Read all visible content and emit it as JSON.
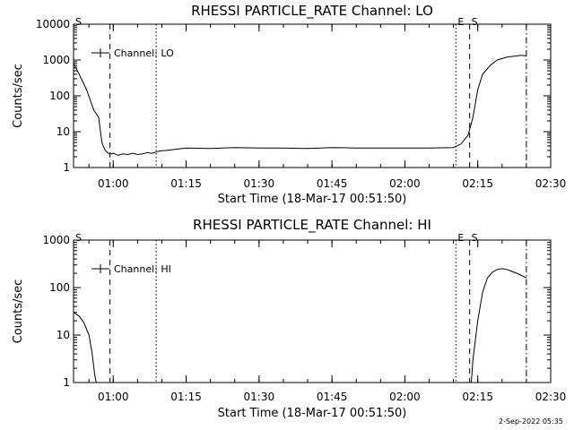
{
  "footer": {
    "timestamp": "2-Sep-2022 05:35"
  },
  "chart_data": [
    {
      "type": "line",
      "title": "RHESSI PARTICLE_RATE Channel: LO",
      "xlabel": "Start Time (18-Mar-17 00:51:50)",
      "ylabel": "Counts/sec",
      "yscale": "log",
      "ylim": [
        1,
        10000
      ],
      "yticks": [
        1,
        10,
        100,
        1000,
        10000
      ],
      "ytick_labels": [
        "1",
        "10",
        "100",
        "1000",
        "10000"
      ],
      "xlim": [
        "00:51:50",
        "02:30:00"
      ],
      "xticks": [
        "01:00",
        "01:15",
        "01:30",
        "01:45",
        "02:00",
        "02:15",
        "02:30"
      ],
      "legend": {
        "label": "Channel: LO",
        "position": "top-left"
      },
      "markers": [
        {
          "time": "00:51:50",
          "label": "S",
          "style": "solid"
        },
        {
          "time": "00:59:20",
          "label": "",
          "style": "dashed"
        },
        {
          "time": "01:08:50",
          "label": "",
          "style": "dotted"
        },
        {
          "time": "02:10:30",
          "label": "E",
          "style": "dotted"
        },
        {
          "time": "02:13:20",
          "label": "S",
          "style": "dashed"
        },
        {
          "time": "02:25:00",
          "label": "",
          "style": "dash-dot"
        }
      ],
      "series": [
        {
          "x": [
            "00:51:50",
            "00:53:00",
            "00:54:30",
            "00:56:00",
            "00:57:00",
            "00:57:40",
            "00:58:20",
            "00:59:00",
            "00:59:30",
            "01:00:00",
            "01:01:00",
            "01:02:00",
            "01:03:00",
            "01:04:00",
            "01:05:00",
            "01:06:00",
            "01:07:00",
            "01:08:00",
            "01:08:50",
            "01:09:30",
            "01:11:00",
            "01:15:00",
            "01:20:00",
            "01:25:00",
            "01:30:00",
            "01:35:00",
            "01:40:00",
            "01:45:00",
            "01:50:00",
            "01:55:00",
            "02:00:00",
            "02:05:00",
            "02:10:00",
            "02:11:30",
            "02:13:00",
            "02:14:00",
            "02:15:00",
            "02:16:00",
            "02:17:30",
            "02:19:00",
            "02:21:00",
            "02:23:00",
            "02:24:00",
            "02:25:00"
          ],
          "y": [
            800,
            400,
            150,
            40,
            25,
            5,
            3,
            2.5,
            2.4,
            2.5,
            2.2,
            2.4,
            2.3,
            2.5,
            2.3,
            2.4,
            2.6,
            2.5,
            2.7,
            2.9,
            3.0,
            3.5,
            3.4,
            3.6,
            3.5,
            3.5,
            3.4,
            3.6,
            3.5,
            3.5,
            3.5,
            3.5,
            3.6,
            4.5,
            8,
            25,
            150,
            400,
            700,
            1000,
            1200,
            1300,
            1350,
            1300
          ]
        }
      ]
    },
    {
      "type": "line",
      "title": "RHESSI PARTICLE_RATE Channel: HI",
      "xlabel": "Start Time (18-Mar-17 00:51:50)",
      "ylabel": "Counts/sec",
      "yscale": "log",
      "ylim": [
        1,
        1000
      ],
      "yticks": [
        1,
        10,
        100,
        1000
      ],
      "ytick_labels": [
        "1",
        "10",
        "100",
        "1000"
      ],
      "xlim": [
        "00:51:50",
        "02:30:00"
      ],
      "xticks": [
        "01:00",
        "01:15",
        "01:30",
        "01:45",
        "02:00",
        "02:15",
        "02:30"
      ],
      "legend": {
        "label": "Channel: HI",
        "position": "top-left"
      },
      "markers": [
        {
          "time": "00:51:50",
          "label": "S",
          "style": "solid"
        },
        {
          "time": "00:59:20",
          "label": "",
          "style": "dashed"
        },
        {
          "time": "01:08:50",
          "label": "",
          "style": "dotted"
        },
        {
          "time": "02:10:30",
          "label": "E",
          "style": "dotted"
        },
        {
          "time": "02:13:20",
          "label": "S",
          "style": "dashed"
        },
        {
          "time": "02:25:00",
          "label": "",
          "style": "dash-dot"
        }
      ],
      "series": [
        {
          "x": [
            "00:51:50",
            "00:53:00",
            "00:54:00",
            "00:55:00",
            "00:55:40",
            "00:56:10",
            "00:56:30"
          ],
          "y": [
            30,
            25,
            18,
            10,
            4,
            1.5,
            1
          ]
        },
        {
          "x": [
            "02:13:40",
            "02:14:00",
            "02:15:00",
            "02:16:00",
            "02:17:00",
            "02:18:00",
            "02:19:00",
            "02:20:00",
            "02:21:00",
            "02:22:00",
            "02:23:00",
            "02:24:00",
            "02:25:00"
          ],
          "y": [
            1,
            3,
            20,
            80,
            160,
            210,
            240,
            250,
            240,
            220,
            200,
            180,
            160
          ]
        }
      ]
    }
  ]
}
